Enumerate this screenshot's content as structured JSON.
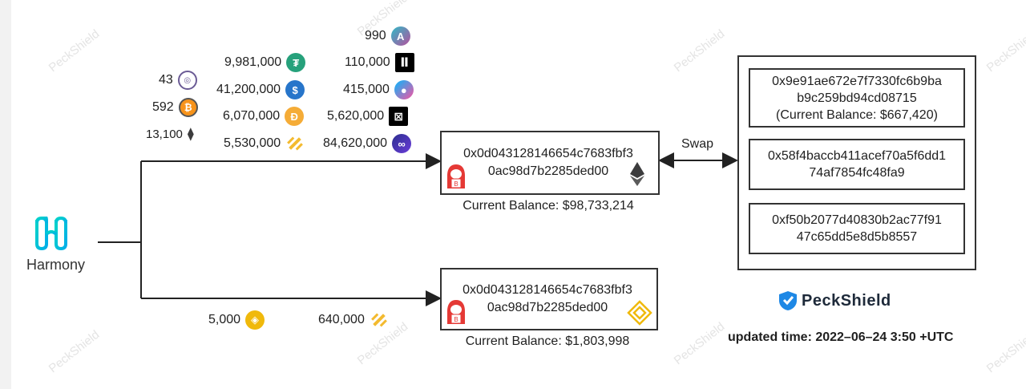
{
  "watermark": "PeckShield",
  "source": {
    "name": "Harmony"
  },
  "tokens_group1": [
    {
      "amount": "43",
      "icon": "dark-coin-icon",
      "color": "#6b5b95"
    },
    {
      "amount": "592",
      "icon": "bitcoin-icon",
      "color": "#f7931a"
    },
    {
      "amount": "13,100",
      "icon": "ethereum-icon",
      "color": "#3c3c3d"
    }
  ],
  "tokens_group2": [
    {
      "amount": "9,981,000",
      "icon": "usdt-icon",
      "color": "#26a17b"
    },
    {
      "amount": "41,200,000",
      "icon": "usdc-icon",
      "color": "#2775ca"
    },
    {
      "amount": "6,070,000",
      "icon": "dai-icon",
      "color": "#f5ac37"
    },
    {
      "amount": "5,530,000",
      "icon": "bnb-icon",
      "color": "#f3ba2f"
    }
  ],
  "tokens_group3": [
    {
      "amount": "990",
      "icon": "aave-icon",
      "color": "#b6509e"
    },
    {
      "amount": "110,000",
      "icon": "synthetix-icon",
      "color": "#000000"
    },
    {
      "amount": "415,000",
      "icon": "sushi-icon",
      "color": "#d65892"
    },
    {
      "amount": "5,620,000",
      "icon": "frax-icon",
      "color": "#000000"
    },
    {
      "amount": "84,620,000",
      "icon": "matic-icon",
      "color": "#3f2a8c"
    }
  ],
  "tokens_group4": [
    {
      "amount": "5,000",
      "icon": "busd-icon",
      "color": "#f0b90b"
    },
    {
      "amount": "640,000",
      "icon": "bnb-icon",
      "color": "#f3ba2f"
    }
  ],
  "attacker_eth": {
    "address_line1": "0x0d043128146654c7683fbf3",
    "address_line2": "0ac98d7b2285ded00",
    "balance": "Current Balance: $98,733,214"
  },
  "attacker_bsc": {
    "address_line1": "0x0d043128146654c7683fbf3",
    "address_line2": "0ac98d7b2285ded00",
    "balance": "Current Balance: $1,803,998"
  },
  "swap_label": "Swap",
  "recipients": [
    {
      "line1": "0x9e91ae672e7f7330fc6b9ba",
      "line2": "b9c259bd94cd08715",
      "line3": "(Current Balance: $667,420)"
    },
    {
      "line1": "0x58f4baccb411acef70a5f6dd1",
      "line2": "74af7854fc48fa9"
    },
    {
      "line1": "0xf50b2077d40830b2ac77f91",
      "line2": "47c65dd5e8d5b8557"
    }
  ],
  "brand": {
    "name": "PeckShield"
  },
  "updated": "updated time: 2022–06–24 3:50 +UTC"
}
